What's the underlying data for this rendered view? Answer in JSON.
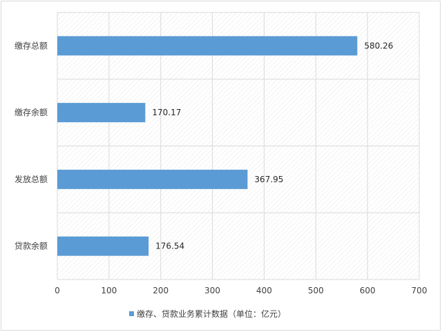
{
  "chart_data": {
    "type": "bar",
    "orientation": "horizontal",
    "categories": [
      "缴存总额",
      "缴存余额",
      "发放总额",
      "贷款余额"
    ],
    "series": [
      {
        "name": "缴存、贷款业务累计数据（单位：亿元）",
        "values": [
          580.26,
          170.17,
          367.95,
          176.54
        ],
        "labels": [
          "580.26",
          "170.17",
          "367.95",
          "176.54"
        ],
        "color": "#5b9bd5"
      }
    ],
    "xlim": [
      0,
      700
    ],
    "xticks": [
      0,
      100,
      200,
      300,
      400,
      500,
      600,
      700
    ],
    "grid": true,
    "legend_position": "bottom"
  }
}
